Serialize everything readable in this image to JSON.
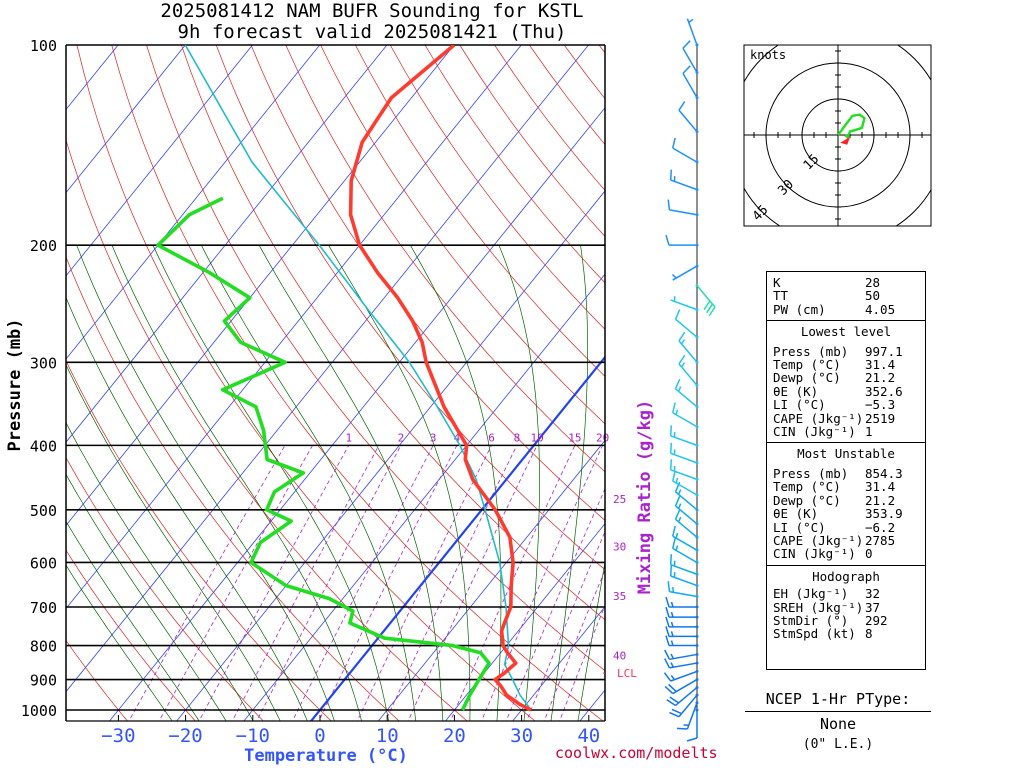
{
  "header": {
    "title_line1": "2025081412 NAM BUFR Sounding for KSTL",
    "title_line2": "9h forecast valid 2025081421 (Thu)"
  },
  "chart_data": {
    "type": "skew-t",
    "pressure_levels": [
      100,
      200,
      300,
      400,
      500,
      600,
      700,
      800,
      900,
      1000
    ],
    "temperature_ticks": [
      -30,
      -20,
      -10,
      0,
      10,
      20,
      30,
      40
    ],
    "xlabel": "Temperature (°C)",
    "ylabel": "Pressure (mb)",
    "mixing_ratio_label": "Mixing Ratio (g/kg)",
    "mixing_ratio_values": [
      "1",
      "2",
      "3",
      "4",
      "6",
      "8",
      "10",
      "15",
      "20",
      "25",
      "30",
      "35",
      "40"
    ],
    "lcl_label": "LCL",
    "colors": {
      "temperature": "#ff3b30",
      "dewpoint": "#22dd22",
      "parcel": "#22bbcc",
      "isotherm": "#3344ff",
      "dry_adiabat": "#dd2222",
      "moist_adiabat": "#006600",
      "mixing_ratio": "#aa22cc",
      "zero_isotherm": "#2244ee"
    },
    "series": [
      {
        "name": "Temperature",
        "points": [
          [
            1000,
            31.4
          ],
          [
            980,
            29
          ],
          [
            950,
            26
          ],
          [
            920,
            24
          ],
          [
            900,
            22.4
          ],
          [
            880,
            23
          ],
          [
            850,
            23.5
          ],
          [
            820,
            21
          ],
          [
            800,
            19.5
          ],
          [
            760,
            17.5
          ],
          [
            740,
            17
          ],
          [
            700,
            16
          ],
          [
            650,
            13.5
          ],
          [
            600,
            11
          ],
          [
            550,
            7.5
          ],
          [
            500,
            2
          ],
          [
            450,
            -5
          ],
          [
            420,
            -8.5
          ],
          [
            400,
            -10
          ],
          [
            350,
            -18
          ],
          [
            300,
            -26
          ],
          [
            280,
            -29
          ],
          [
            260,
            -33
          ],
          [
            240,
            -38
          ],
          [
            220,
            -44
          ],
          [
            200,
            -50
          ],
          [
            180,
            -55
          ],
          [
            160,
            -59
          ],
          [
            140,
            -62
          ],
          [
            120,
            -63
          ],
          [
            100,
            -60
          ]
        ]
      },
      {
        "name": "Dewpoint",
        "points": [
          [
            1000,
            21.2
          ],
          [
            950,
            20.5
          ],
          [
            900,
            20
          ],
          [
            850,
            19.5
          ],
          [
            820,
            17
          ],
          [
            800,
            12
          ],
          [
            780,
            1
          ],
          [
            740,
            -6
          ],
          [
            710,
            -7
          ],
          [
            680,
            -12
          ],
          [
            650,
            -20
          ],
          [
            600,
            -28
          ],
          [
            560,
            -29
          ],
          [
            520,
            -27
          ],
          [
            500,
            -32
          ],
          [
            470,
            -33
          ],
          [
            440,
            -31
          ],
          [
            420,
            -38
          ],
          [
            380,
            -42
          ],
          [
            350,
            -46
          ],
          [
            330,
            -53
          ],
          [
            300,
            -47
          ],
          [
            280,
            -56
          ],
          [
            260,
            -61
          ],
          [
            240,
            -60
          ],
          [
            220,
            -69
          ],
          [
            200,
            -80
          ],
          [
            180,
            -79
          ],
          [
            170,
            -76
          ]
        ]
      },
      {
        "name": "Parcel",
        "points": [
          [
            1000,
            31.4
          ],
          [
            950,
            28
          ],
          [
            900,
            25
          ],
          [
            854,
            22
          ],
          [
            800,
            20.3
          ],
          [
            700,
            15.3
          ],
          [
            600,
            9
          ],
          [
            500,
            0.5
          ],
          [
            450,
            -4.5
          ],
          [
            400,
            -11
          ],
          [
            350,
            -19
          ],
          [
            300,
            -28.5
          ],
          [
            250,
            -41
          ],
          [
            200,
            -56
          ],
          [
            150,
            -76
          ],
          [
            100,
            -100
          ]
        ]
      }
    ],
    "wind_barbs": [
      {
        "p": 1000,
        "dir": 180,
        "spd": 10
      },
      {
        "p": 975,
        "dir": 200,
        "spd": 15
      },
      {
        "p": 950,
        "dir": 220,
        "spd": 20
      },
      {
        "p": 925,
        "dir": 230,
        "spd": 20
      },
      {
        "p": 900,
        "dir": 240,
        "spd": 20
      },
      {
        "p": 875,
        "dir": 250,
        "spd": 15
      },
      {
        "p": 850,
        "dir": 260,
        "spd": 15
      },
      {
        "p": 825,
        "dir": 260,
        "spd": 15
      },
      {
        "p": 800,
        "dir": 270,
        "spd": 15
      },
      {
        "p": 775,
        "dir": 270,
        "spd": 15
      },
      {
        "p": 750,
        "dir": 270,
        "spd": 15
      },
      {
        "p": 725,
        "dir": 270,
        "spd": 15
      },
      {
        "p": 700,
        "dir": 270,
        "spd": 15
      },
      {
        "p": 675,
        "dir": 280,
        "spd": 15
      },
      {
        "p": 650,
        "dir": 290,
        "spd": 15
      },
      {
        "p": 625,
        "dir": 290,
        "spd": 15
      },
      {
        "p": 600,
        "dir": 300,
        "spd": 15
      },
      {
        "p": 575,
        "dir": 300,
        "spd": 15
      },
      {
        "p": 550,
        "dir": 310,
        "spd": 15
      },
      {
        "p": 525,
        "dir": 310,
        "spd": 15
      },
      {
        "p": 500,
        "dir": 310,
        "spd": 15
      },
      {
        "p": 475,
        "dir": 300,
        "spd": 15
      },
      {
        "p": 450,
        "dir": 290,
        "spd": 15
      },
      {
        "p": 425,
        "dir": 290,
        "spd": 15
      },
      {
        "p": 400,
        "dir": 290,
        "spd": 15
      },
      {
        "p": 375,
        "dir": 300,
        "spd": 15
      },
      {
        "p": 350,
        "dir": 310,
        "spd": 15
      },
      {
        "p": 325,
        "dir": 320,
        "spd": 15
      },
      {
        "p": 300,
        "dir": 320,
        "spd": 15
      },
      {
        "p": 275,
        "dir": 310,
        "spd": 10
      },
      {
        "p": 250,
        "dir": 290,
        "spd": 5
      },
      {
        "p": 230,
        "dir": 140,
        "spd": 30
      },
      {
        "p": 215,
        "dir": 240,
        "spd": 5
      },
      {
        "p": 200,
        "dir": 270,
        "spd": 10
      },
      {
        "p": 180,
        "dir": 280,
        "spd": 10
      },
      {
        "p": 165,
        "dir": 290,
        "spd": 15
      },
      {
        "p": 150,
        "dir": 300,
        "spd": 10
      },
      {
        "p": 135,
        "dir": 320,
        "spd": 10
      },
      {
        "p": 120,
        "dir": 330,
        "spd": 10
      },
      {
        "p": 110,
        "dir": 330,
        "spd": 10
      },
      {
        "p": 100,
        "dir": 340,
        "spd": 5
      }
    ]
  },
  "hodograph": {
    "units_label": "knots",
    "ring_labels": [
      "15",
      "30",
      "45"
    ],
    "ring_values": [
      15,
      30,
      45
    ],
    "trace": [
      [
        0,
        0
      ],
      [
        3,
        4
      ],
      [
        6,
        8
      ],
      [
        9,
        8.5
      ],
      [
        11,
        7
      ],
      [
        10,
        3
      ],
      [
        7,
        2
      ],
      [
        5,
        1.5
      ],
      [
        4,
        -1
      ],
      [
        3,
        0
      ]
    ],
    "storm_motion": [
      3,
      -2
    ]
  },
  "indices": {
    "summary": [
      {
        "label": "K",
        "value": "28"
      },
      {
        "label": "TT",
        "value": "50"
      },
      {
        "label": "PW (cm)",
        "value": "4.05"
      }
    ],
    "lowest_level": {
      "heading": "Lowest level",
      "rows": [
        {
          "label": "Press (mb)",
          "value": "997.1"
        },
        {
          "label": "Temp (°C)",
          "value": "31.4"
        },
        {
          "label": "Dewp (°C)",
          "value": "21.2"
        },
        {
          "label": "θE (K)",
          "value": "352.6"
        },
        {
          "label": "LI (°C)",
          "value": "−5.3"
        },
        {
          "label": "CAPE (Jkg⁻¹)",
          "value": "2519"
        },
        {
          "label": "CIN (Jkg⁻¹)",
          "value": "1"
        }
      ]
    },
    "most_unstable": {
      "heading": "Most Unstable",
      "rows": [
        {
          "label": "Press (mb)",
          "value": "854.3"
        },
        {
          "label": "Temp (°C)",
          "value": "31.4"
        },
        {
          "label": "Dewp (°C)",
          "value": "21.2"
        },
        {
          "label": "θE (K)",
          "value": "353.9"
        },
        {
          "label": "LI (°C)",
          "value": "−6.2"
        },
        {
          "label": "CAPE (Jkg⁻¹)",
          "value": "2785"
        },
        {
          "label": "CIN (Jkg⁻¹)",
          "value": "0"
        }
      ]
    },
    "hodograph": {
      "heading": "Hodograph",
      "rows": [
        {
          "label": "EH (Jkg⁻¹)",
          "value": "32"
        },
        {
          "label": "SREH (Jkg⁻¹)",
          "value": "37"
        },
        {
          "label": "StmDir (°)",
          "value": "292"
        },
        {
          "label": "StmSpd (kt)",
          "value": "8"
        }
      ]
    }
  },
  "ptype": {
    "title": "NCEP 1-Hr PType:",
    "value": "None",
    "accum": "(0\" L.E.)"
  },
  "credit": "coolwx.com/modelts"
}
